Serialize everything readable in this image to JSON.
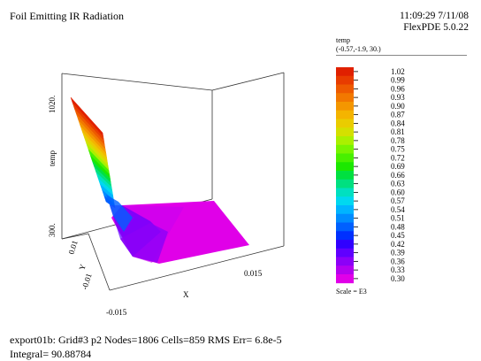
{
  "header": {
    "title": "Foil Emitting IR Radiation",
    "time": "11:09:29 7/11/08",
    "software": "FlexPDE 5.0.22"
  },
  "legend": {
    "variable": "temp",
    "view": "(-0.57,-1.9, 30.)",
    "scale_note": "Scale = E3",
    "colors": [
      "#e02000",
      "#e83c00",
      "#ee5a00",
      "#f27800",
      "#f49600",
      "#f4b400",
      "#eacc00",
      "#d4e000",
      "#aaf000",
      "#78f400",
      "#48f000",
      "#1ce800",
      "#00e040",
      "#00e080",
      "#00e0c0",
      "#00d8f0",
      "#00b4ff",
      "#008cff",
      "#0060ff",
      "#0030ff",
      "#3000ff",
      "#6000ff",
      "#8c00f8",
      "#b400f0",
      "#e000e8"
    ]
  },
  "chart_data": {
    "type": "surface",
    "title": "Foil Emitting IR Radiation",
    "variable": "temp",
    "x_axis": {
      "label": "X",
      "tick_labels": [
        "-0.015",
        "0.015"
      ]
    },
    "y_axis": {
      "label": "Y",
      "tick_labels": [
        "-0.01",
        "0.01"
      ]
    },
    "z_axis": {
      "label": "temp",
      "tick_labels": [
        "300.",
        "1020."
      ]
    },
    "color_scale": {
      "multiplier": "E3",
      "tick_labels": [
        "1.02",
        "0.99",
        "0.96",
        "0.93",
        "0.90",
        "0.87",
        "0.84",
        "0.81",
        "0.78",
        "0.75",
        "0.72",
        "0.69",
        "0.66",
        "0.63",
        "0.60",
        "0.57",
        "0.54",
        "0.51",
        "0.48",
        "0.45",
        "0.42",
        "0.39",
        "0.36",
        "0.33",
        "0.30"
      ],
      "min": 0.3,
      "max": 1.02
    },
    "view_point": "(-0.57,-1.9, 30.)"
  },
  "footer": {
    "line1": "export01b:  Grid#3  p2  Nodes=1806 Cells=859 RMS Err= 6.8e-5",
    "line2": "Integral=  90.88784"
  }
}
